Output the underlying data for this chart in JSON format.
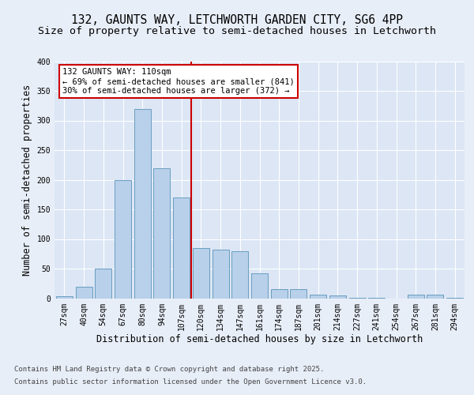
{
  "title_line1": "132, GAUNTS WAY, LETCHWORTH GARDEN CITY, SG6 4PP",
  "title_line2": "Size of property relative to semi-detached houses in Letchworth",
  "xlabel": "Distribution of semi-detached houses by size in Letchworth",
  "ylabel": "Number of semi-detached properties",
  "bar_labels": [
    "27sqm",
    "40sqm",
    "54sqm",
    "67sqm",
    "80sqm",
    "94sqm",
    "107sqm",
    "120sqm",
    "134sqm",
    "147sqm",
    "161sqm",
    "174sqm",
    "187sqm",
    "201sqm",
    "214sqm",
    "227sqm",
    "241sqm",
    "254sqm",
    "267sqm",
    "281sqm",
    "294sqm"
  ],
  "bar_values": [
    3,
    20,
    50,
    200,
    320,
    220,
    170,
    85,
    82,
    80,
    42,
    15,
    15,
    6,
    5,
    1,
    1,
    0,
    6,
    6,
    1
  ],
  "bar_color": "#b8d0ea",
  "bar_edge_color": "#6a9ec0",
  "fig_bg_color": "#e8eef8",
  "axes_bg_color": "#dce6f5",
  "grid_color": "#ffffff",
  "vline_x_index": 6,
  "vline_color": "#cc0000",
  "annotation_title": "132 GAUNTS WAY: 110sqm",
  "annotation_line1": "← 69% of semi-detached houses are smaller (841)",
  "annotation_line2": "30% of semi-detached houses are larger (372) →",
  "annotation_box_color": "#cc0000",
  "ylim": [
    0,
    400
  ],
  "yticks": [
    0,
    50,
    100,
    150,
    200,
    250,
    300,
    350,
    400
  ],
  "footer_line1": "Contains HM Land Registry data © Crown copyright and database right 2025.",
  "footer_line2": "Contains public sector information licensed under the Open Government Licence v3.0.",
  "title_fontsize": 10.5,
  "subtitle_fontsize": 9.5,
  "axis_label_fontsize": 8.5,
  "tick_fontsize": 7,
  "footer_fontsize": 6.5,
  "annotation_fontsize": 7.5
}
